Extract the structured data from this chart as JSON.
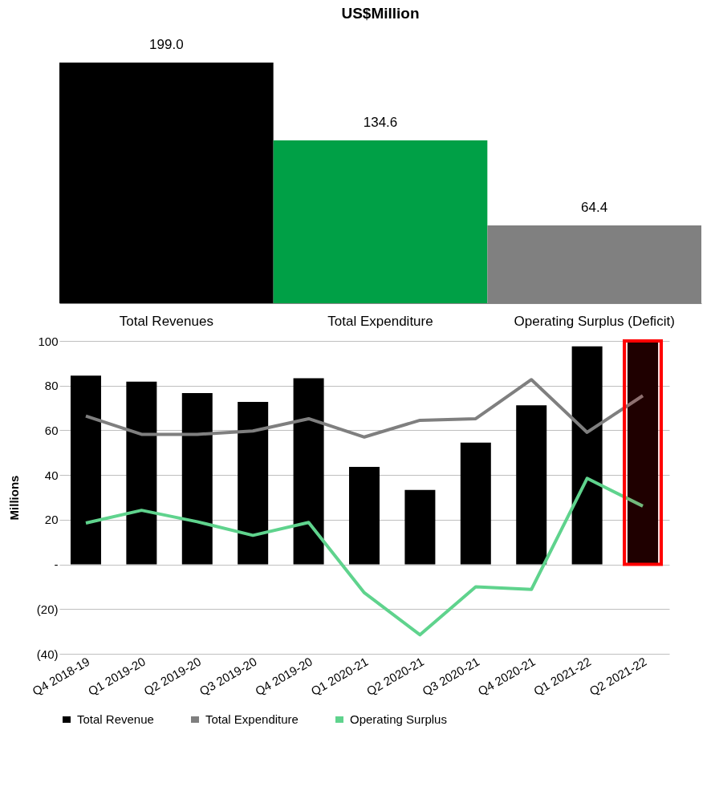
{
  "chart_data": [
    {
      "type": "bar",
      "title": "US$Million",
      "categories": [
        "Total Revenues",
        "Total Expenditure",
        "Operating Surplus (Deficit)"
      ],
      "values": [
        199.0,
        134.6,
        64.4
      ],
      "colors": [
        "#000000",
        "#00a046",
        "#808080"
      ],
      "value_labels": [
        "199.0",
        "134.6",
        "64.4"
      ],
      "tick_labels": "x",
      "grid": false
    },
    {
      "type": "bar",
      "ylabel": "Millions",
      "categories": [
        "Q4 2018-19",
        "Q1 2019-20",
        "Q2 2019-20",
        "Q3 2019-20",
        "Q4 2019-20",
        "Q1 2020-21",
        "Q2 2020-21",
        "Q3 2020-21",
        "Q4 2020-21",
        "Q1 2021-22",
        "Q2 2021-22"
      ],
      "series": [
        {
          "name": "Total Revenue",
          "color": "#000000",
          "values": [
            84.5,
            81.8,
            76.7,
            72.7,
            83.3,
            43.6,
            33.3,
            54.5,
            71.2,
            97.6,
            100
          ]
        },
        {
          "name": "Total Expenditure",
          "type": "line",
          "color": "#7f7f7f",
          "values": [
            66.4,
            58.2,
            58.2,
            59.7,
            65.2,
            57,
            64.5,
            65.2,
            82.7,
            59.1,
            75.5
          ]
        },
        {
          "name": "Operating Surplus",
          "type": "line",
          "color": "#5fd38d",
          "values": [
            18.5,
            24.2,
            19.1,
            13,
            18.8,
            -12.7,
            -31.5,
            -10,
            -11.2,
            38.5,
            26.1
          ]
        }
      ],
      "ylim": [
        -40,
        100
      ],
      "yticks": [
        {
          "value": -40,
          "label": "(40)"
        },
        {
          "value": -20,
          "label": "(20)"
        },
        {
          "value": 0,
          "label": "-"
        },
        20,
        40,
        60,
        80,
        100
      ],
      "bands": [
        {
          "axis": "x",
          "from": "Q2 2021-22",
          "to": "Q2 2021-22",
          "color": "#ff0000"
        }
      ],
      "grid": "y",
      "legend": "bottom",
      "line_style": "solid",
      "marker": "none"
    }
  ]
}
